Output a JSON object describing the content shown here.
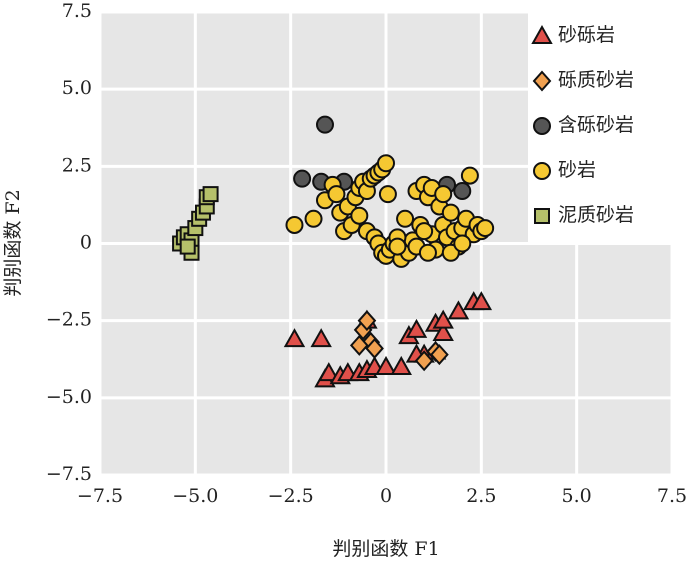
{
  "chart_data": {
    "type": "scatter",
    "x_label": "判别函数 F1",
    "y_label": "判别函数 F2",
    "xlim": [
      -7.5,
      7.5
    ],
    "ylim": [
      -7.5,
      7.5
    ],
    "xticks": [
      {
        "value": -7.5,
        "label": "−7.5"
      },
      {
        "value": -5,
        "label": "−5.0"
      },
      {
        "value": -2.5,
        "label": "−2.5"
      },
      0,
      2.5,
      {
        "value": 5,
        "label": "5.0"
      },
      7.5
    ],
    "yticks": [
      {
        "value": -7.5,
        "label": "−7.5"
      },
      {
        "value": -5,
        "label": "−5.0"
      },
      {
        "value": -2.5,
        "label": "−2.5"
      },
      0,
      2.5,
      {
        "value": 5,
        "label": "5.0"
      },
      7.5
    ],
    "grid": true,
    "legend": "upper right",
    "series": [
      {
        "name": "砂砾岩",
        "color": "#e0504a",
        "marker": "triangle",
        "x": [
          -2.4,
          -1.7,
          -1.6,
          -1.5,
          -1.2,
          -1.0,
          -0.7,
          -0.5,
          -0.3,
          -0.5,
          0.0,
          0.4,
          0.6,
          0.8,
          1.0,
          1.3,
          1.3,
          1.5,
          1.5,
          1.9,
          2.3,
          2.5,
          0.8
        ],
        "values": [
          -3.1,
          -3.1,
          -4.4,
          -4.2,
          -4.3,
          -4.2,
          -4.2,
          -4.1,
          -4.0,
          -2.5,
          -4.0,
          -4.0,
          -3.0,
          -2.8,
          -3.6,
          -2.6,
          -3.5,
          -2.9,
          -2.5,
          -2.2,
          -1.9,
          -1.9,
          -3.6
        ]
      },
      {
        "name": "砾质砂岩",
        "color": "#f0a050",
        "marker": "diamond",
        "x": [
          -0.6,
          -0.5,
          -0.4,
          -0.3,
          1.0,
          1.3,
          1.4,
          -0.7
        ],
        "values": [
          -2.8,
          -2.5,
          -3.2,
          -3.4,
          -3.8,
          -3.5,
          -3.6,
          -3.3
        ]
      },
      {
        "name": "含砾砂岩",
        "color": "#555555",
        "marker": "circle",
        "x": [
          -1.6,
          -2.2,
          -1.7,
          -1.1,
          1.6,
          2.0
        ],
        "values": [
          3.85,
          2.1,
          2.0,
          2.0,
          1.9,
          1.7
        ]
      },
      {
        "name": "砂岩",
        "color": "#f5c832",
        "marker": "circle",
        "x": [
          -2.4,
          -1.9,
          -1.6,
          -1.4,
          -1.3,
          -1.2,
          -1.0,
          -1.1,
          -0.9,
          -0.8,
          -0.7,
          -0.6,
          -0.5,
          -0.4,
          -0.3,
          -0.2,
          -0.1,
          0.0,
          -0.5,
          -0.3,
          -0.2,
          -0.1,
          0.0,
          0.1,
          0.2,
          0.4,
          0.5,
          0.6,
          0.7,
          0.8,
          0.9,
          1.0,
          1.1,
          1.2,
          1.2,
          1.3,
          1.4,
          1.5,
          1.5,
          1.6,
          1.7,
          1.8,
          1.9,
          2.0,
          2.1,
          2.2,
          2.3,
          2.4,
          2.5,
          2.6,
          0.3,
          0.8,
          1.0,
          1.1,
          0.05,
          -0.7,
          0.3,
          1.7,
          2.0
        ],
        "values": [
          0.6,
          0.8,
          1.4,
          1.9,
          1.6,
          1.0,
          1.2,
          0.4,
          0.6,
          1.5,
          1.8,
          2.0,
          1.7,
          2.1,
          2.2,
          2.3,
          2.4,
          2.6,
          0.4,
          0.2,
          0.0,
          -0.3,
          -0.4,
          -0.2,
          0.0,
          -0.5,
          0.8,
          -0.3,
          0.1,
          1.7,
          0.6,
          1.9,
          1.5,
          0.3,
          1.8,
          -0.2,
          1.2,
          0.6,
          1.6,
          0.2,
          1.0,
          0.4,
          -0.1,
          0.5,
          0.8,
          2.2,
          0.3,
          0.6,
          0.4,
          0.5,
          0.2,
          -0.1,
          0.4,
          -0.3,
          1.6,
          0.9,
          -0.1,
          -0.3,
          0.0
        ]
      },
      {
        "name": "泥质砂岩",
        "color": "#b5c06a",
        "marker": "square",
        "x": [
          -5.4,
          -5.3,
          -5.2,
          -5.1,
          -5.1,
          -5.0,
          -4.9,
          -4.8,
          -4.7,
          -4.7,
          -4.6,
          -5.2
        ],
        "values": [
          0.0,
          0.2,
          0.3,
          0.1,
          -0.3,
          0.5,
          0.8,
          1.0,
          1.2,
          1.5,
          1.6,
          -0.1
        ]
      }
    ]
  }
}
